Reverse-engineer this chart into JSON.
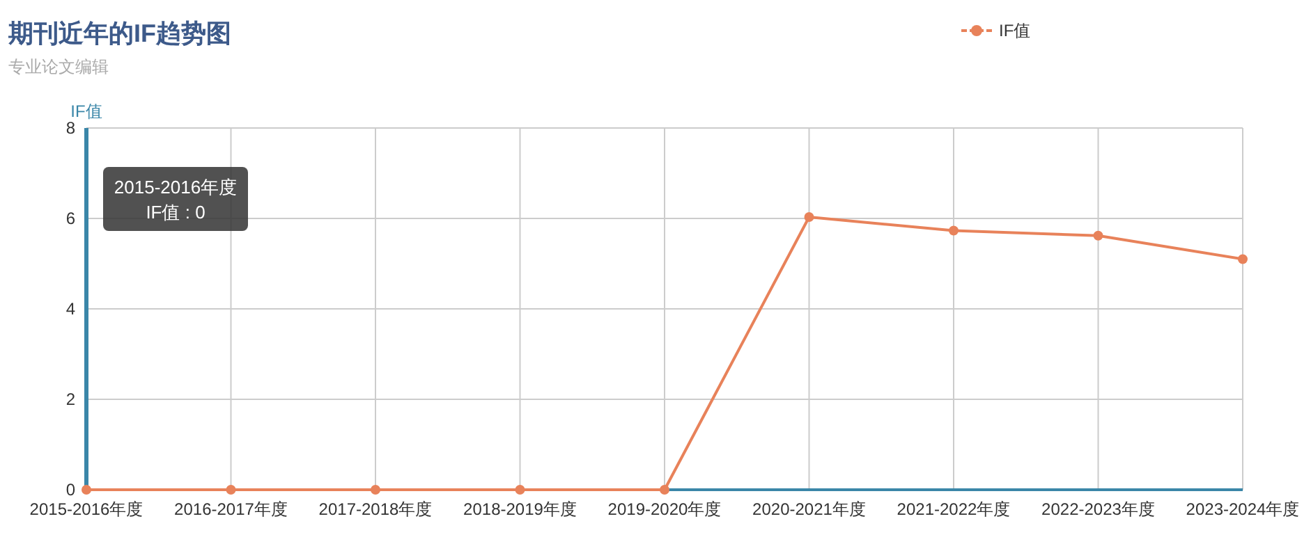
{
  "chart_data": {
    "type": "line",
    "title": "期刊近年的IF趋势图",
    "subtitle": "专业论文编辑",
    "ylabel": "IF值",
    "categories": [
      "2015-2016年度",
      "2016-2017年度",
      "2017-2018年度",
      "2018-2019年度",
      "2019-2020年度",
      "2020-2021年度",
      "2021-2022年度",
      "2022-2023年度",
      "2023-2024年度"
    ],
    "series": [
      {
        "name": "IF值",
        "color": "#e8825a",
        "values": [
          0,
          0,
          0,
          0,
          0,
          6.03,
          5.73,
          5.62,
          5.1
        ]
      }
    ],
    "ylim": [
      0,
      8
    ],
    "yticks": [
      0,
      2,
      4,
      6,
      8
    ],
    "grid": true,
    "legend": "top right",
    "marker": "circle",
    "line_style": "solid",
    "annotations": [
      "2015-2016年度\nIF值 : 0"
    ]
  }
}
